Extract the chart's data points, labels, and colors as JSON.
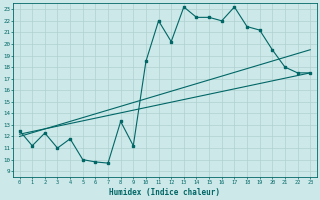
{
  "background_color": "#cde8e8",
  "grid_color": "#b0d0d0",
  "line_color": "#006666",
  "xlabel": "Humidex (Indice chaleur)",
  "xlim": [
    -0.5,
    23.5
  ],
  "ylim": [
    8.5,
    23.5
  ],
  "xticks": [
    0,
    1,
    2,
    3,
    4,
    5,
    6,
    7,
    8,
    9,
    10,
    11,
    12,
    13,
    14,
    15,
    16,
    17,
    18,
    19,
    20,
    21,
    22,
    23
  ],
  "yticks": [
    9,
    10,
    11,
    12,
    13,
    14,
    15,
    16,
    17,
    18,
    19,
    20,
    21,
    22,
    23
  ],
  "jagged_x": [
    0,
    1,
    2,
    3,
    4,
    5,
    6,
    7,
    8,
    9,
    10,
    11,
    12,
    13,
    14,
    15,
    16,
    17,
    18,
    19,
    20,
    21,
    22,
    23
  ],
  "jagged_y": [
    12.5,
    11.2,
    12.3,
    11.0,
    11.8,
    10.0,
    9.8,
    9.7,
    13.3,
    11.2,
    18.5,
    22.0,
    20.2,
    23.2,
    22.3,
    22.3,
    22.0,
    23.2,
    21.5,
    21.2,
    19.5,
    18.0,
    17.5,
    17.5
  ],
  "line1_x": [
    0,
    23
  ],
  "line1_y": [
    12.2,
    17.5
  ],
  "line2_x": [
    0,
    23
  ],
  "line2_y": [
    12.0,
    19.5
  ]
}
